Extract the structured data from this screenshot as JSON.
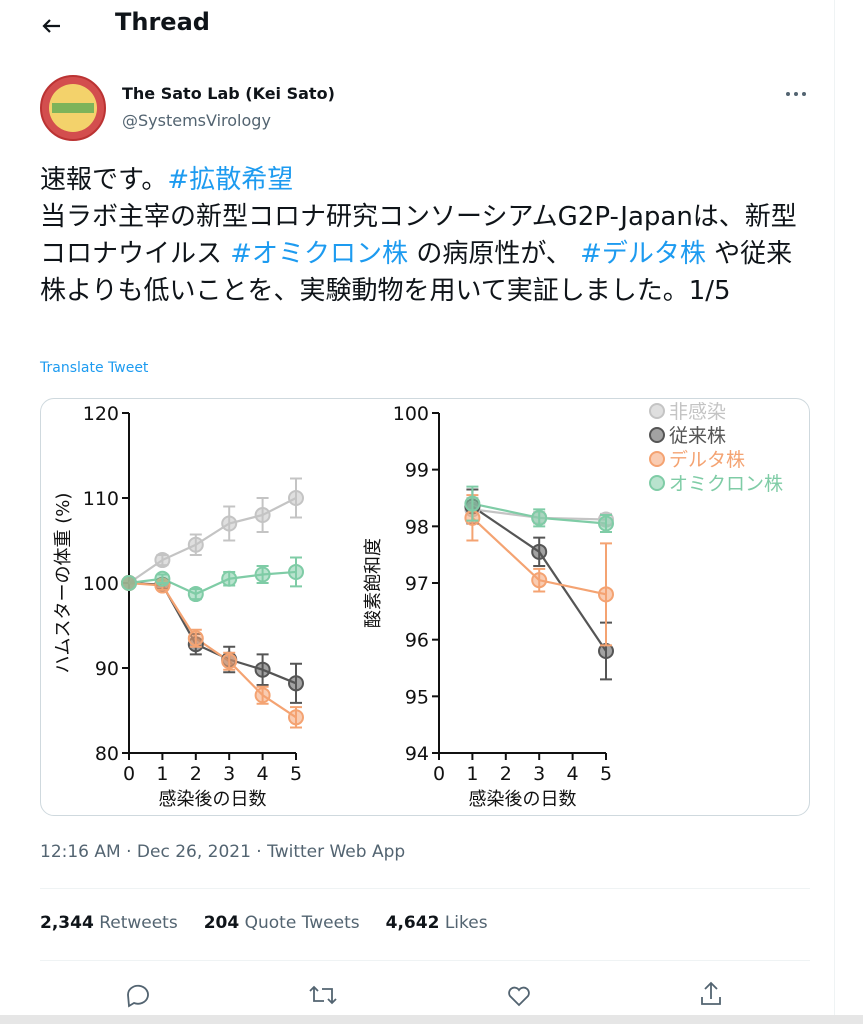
{
  "header": {
    "title": "Thread"
  },
  "tweet": {
    "author": {
      "name": "The Sato Lab (Kei Sato)",
      "handle": "@SystemsVirology"
    },
    "paragraphs": [
      [
        {
          "text": "速報です。"
        },
        {
          "text": "#拡散希望",
          "hashtag": true
        }
      ],
      [
        {
          "text": "当ラボ主宰の新型コロナ研究コンソーシアムG2P-Japanは、新型コロナウイルス "
        },
        {
          "text": "#オミクロン株",
          "hashtag": true
        },
        {
          "text": " の病原性が、 "
        },
        {
          "text": "#デルタ株",
          "hashtag": true
        },
        {
          "text": " や従来株よりも低いことを、実験動物を用いて実証しました。1/5"
        }
      ]
    ],
    "translate": "Translate Tweet",
    "timestamp": "12:16 AM · Dec 26, 2021 · Twitter Web App",
    "metrics": [
      {
        "count": "2,344",
        "label": "Retweets"
      },
      {
        "count": "204",
        "label": "Quote Tweets"
      },
      {
        "count": "4,642",
        "label": "Likes"
      }
    ]
  },
  "chart_data": [
    {
      "type": "line",
      "ylabel": "ハムスターの体重 (%)",
      "xlabel": "感染後の日数",
      "x": [
        0,
        1,
        2,
        3,
        4,
        5
      ],
      "xlim": [
        0,
        5
      ],
      "xticks": [
        0,
        1,
        2,
        3,
        4,
        5
      ],
      "ylim": [
        80,
        120
      ],
      "yticks": [
        80,
        90,
        100,
        110,
        120
      ],
      "series": [
        {
          "color": "#c4c4c4",
          "values": [
            100,
            102.7,
            104.5,
            107,
            108,
            110
          ],
          "errors": [
            0,
            0.6,
            1.2,
            2,
            2,
            2.3
          ]
        },
        {
          "color": "#555555",
          "values": [
            100,
            99.8,
            92.8,
            91,
            89.8,
            88.2
          ],
          "errors": [
            0,
            0.5,
            1.2,
            1.5,
            1.8,
            2.3
          ]
        },
        {
          "color": "#f4a372",
          "values": [
            100,
            99.7,
            93.5,
            90.8,
            86.8,
            84.2
          ],
          "errors": [
            0,
            0.5,
            1,
            1,
            1,
            1.2
          ]
        },
        {
          "color": "#7fcca6",
          "values": [
            100,
            100.5,
            98.7,
            100.5,
            101,
            101.3
          ],
          "errors": [
            0,
            0.5,
            0.6,
            0.8,
            1,
            1.7
          ]
        }
      ]
    },
    {
      "type": "line",
      "ylabel": "酸素飽和度",
      "xlabel": "感染後の日数",
      "x": [
        1,
        3,
        5
      ],
      "xlim": [
        0,
        5
      ],
      "xticks": [
        0,
        1,
        2,
        3,
        4,
        5
      ],
      "ylim": [
        94,
        100
      ],
      "yticks": [
        94,
        95,
        96,
        97,
        98,
        99,
        100
      ],
      "legend": "top-right",
      "series": [
        {
          "name": "非感染",
          "color": "#c4c4c4",
          "values": [
            98.3,
            98.15,
            98.12
          ],
          "errors": [
            0.2,
            0.1,
            0.1
          ]
        },
        {
          "name": "従来株",
          "color": "#555555",
          "values": [
            98.35,
            97.55,
            95.8
          ],
          "errors": [
            0.3,
            0.25,
            0.5
          ]
        },
        {
          "name": "デルタ株",
          "color": "#f4a372",
          "values": [
            98.15,
            97.05,
            96.8
          ],
          "errors": [
            0.4,
            0.2,
            0.9
          ]
        },
        {
          "name": "オミクロン株",
          "color": "#7fcca6",
          "values": [
            98.4,
            98.15,
            98.05
          ],
          "errors": [
            0.3,
            0.15,
            0.15
          ]
        }
      ]
    }
  ]
}
